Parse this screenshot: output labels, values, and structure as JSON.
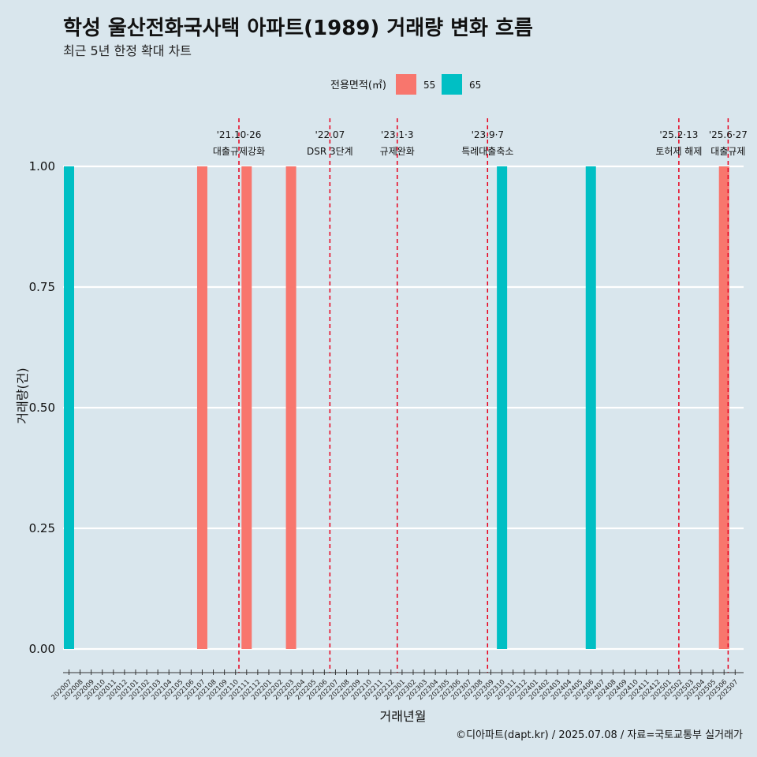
{
  "title": "학성 울산전화국사택 아파트(1989) 거래량 변화 흐름",
  "subtitle": "최근 5년 한정 확대 차트",
  "caption": "©디아파트(dapt.kr) / 2025.07.08 / 자료=국토교통부 실거래가",
  "colors": {
    "background": "#d9e6ed",
    "grid": "#ffffff",
    "vline": "#e8001c"
  },
  "chart_data": {
    "type": "bar",
    "xlabel": "거래년월",
    "ylabel": "거래량(건)",
    "ylim": [
      0,
      1
    ],
    "yticks": [
      "0.00",
      "0.25",
      "0.50",
      "0.75",
      "1.00"
    ],
    "grid": true,
    "legend": {
      "title": "전용면적(㎡)",
      "placement": "top",
      "entries": [
        {
          "label": "55",
          "color": "#f8766d"
        },
        {
          "label": "65",
          "color": "#00bfc4"
        }
      ]
    },
    "categories": [
      "202007",
      "202008",
      "202009",
      "202010",
      "202011",
      "202012",
      "202101",
      "202102",
      "202103",
      "202104",
      "202105",
      "202106",
      "202107",
      "202108",
      "202109",
      "202110",
      "202111",
      "202112",
      "202201",
      "202202",
      "202203",
      "202204",
      "202205",
      "202206",
      "202207",
      "202208",
      "202209",
      "202210",
      "202211",
      "202212",
      "202301",
      "202302",
      "202303",
      "202304",
      "202305",
      "202306",
      "202307",
      "202308",
      "202309",
      "202310",
      "202311",
      "202312",
      "202401",
      "202402",
      "202403",
      "202404",
      "202405",
      "202406",
      "202407",
      "202408",
      "202409",
      "202410",
      "202411",
      "202412",
      "202501",
      "202502",
      "202503",
      "202504",
      "202505",
      "202506",
      "202507"
    ],
    "bars": [
      {
        "month": "202007",
        "area": "65",
        "value": 1
      },
      {
        "month": "202107",
        "area": "55",
        "value": 1
      },
      {
        "month": "202111",
        "area": "55",
        "value": 1
      },
      {
        "month": "202203",
        "area": "55",
        "value": 1
      },
      {
        "month": "202310",
        "area": "65",
        "value": 1
      },
      {
        "month": "202406",
        "area": "65",
        "value": 1
      },
      {
        "month": "202506",
        "area": "55",
        "value": 1
      }
    ],
    "annotations": [
      {
        "date": "2021-10-26",
        "month": "202110",
        "line1": "'21.10·26",
        "line2": "대출규제강화"
      },
      {
        "date": "2022-07-01",
        "month": "202207",
        "line1": "'22.07",
        "line2": "DSR 3단계"
      },
      {
        "date": "2023-01-03",
        "month": "202301",
        "line1": "'23.1·3",
        "line2": "규제완화"
      },
      {
        "date": "2023-09-07",
        "month": "202309",
        "line1": "'23.9·7",
        "line2": "특례대출축소"
      },
      {
        "date": "2025-02-13",
        "month": "202502",
        "line1": "'25.2·13",
        "line2": "토허제 해제"
      },
      {
        "date": "2025-06-27",
        "month": "202506",
        "line1": "'25.6·27",
        "line2": "대출규제"
      }
    ]
  }
}
